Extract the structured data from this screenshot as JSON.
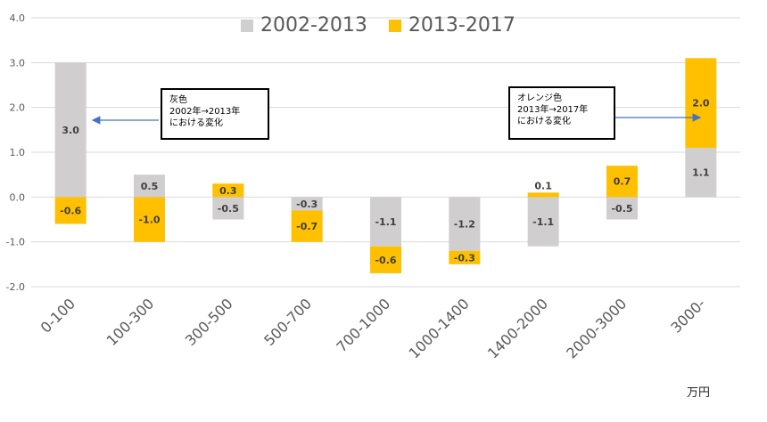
{
  "chart_data": {
    "type": "bar",
    "stacking": "stacked",
    "categories": [
      "0-100",
      "100-300",
      "300-500",
      "500-700",
      "700-1000",
      "1000-1400",
      "1400-2000",
      "2000-3000",
      "3000-"
    ],
    "series": [
      {
        "name": "2002-2013",
        "color": "#D0CECE",
        "values": [
          3.0,
          0.5,
          -0.5,
          -0.3,
          -1.1,
          -1.2,
          -1.1,
          -0.5,
          1.1
        ]
      },
      {
        "name": "2013-2017",
        "color": "#FFC000",
        "values": [
          -0.6,
          -1.0,
          0.3,
          -0.7,
          -0.6,
          -0.3,
          0.1,
          0.7,
          2.0
        ]
      }
    ],
    "ylim": [
      -2.0,
      4.0
    ],
    "yticks": [
      "4.0",
      "3.0",
      "2.0",
      "1.0",
      "0.0",
      "-1.0",
      "-2.0"
    ],
    "grid": true,
    "legend": "top-center"
  },
  "annotations": {
    "left": "灰色\n2002年→2013年\nにおける変化",
    "right": "オレンジ色\n2013年→2017年\nにおける変化"
  },
  "unit_label": "万円"
}
